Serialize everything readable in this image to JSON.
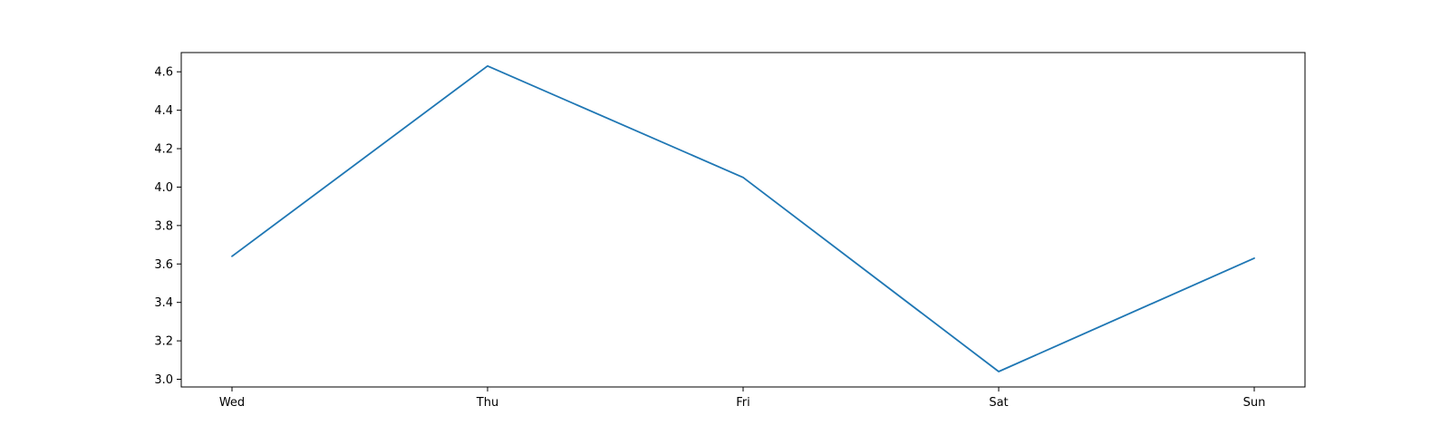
{
  "chart_data": {
    "type": "line",
    "categories": [
      "Wed",
      "Thu",
      "Fri",
      "Sat",
      "Sun"
    ],
    "series": [
      {
        "values": [
          3.64,
          4.63,
          4.05,
          3.04,
          3.63
        ],
        "color": "#1f77b4"
      }
    ],
    "ylim": [
      2.96,
      4.7
    ],
    "yticks": [
      "3.0",
      "3.2",
      "3.4",
      "3.6",
      "3.8",
      "4.0",
      "4.2",
      "4.4",
      "4.6"
    ],
    "grid": false,
    "xlabel": "",
    "ylabel": "",
    "title": ""
  }
}
